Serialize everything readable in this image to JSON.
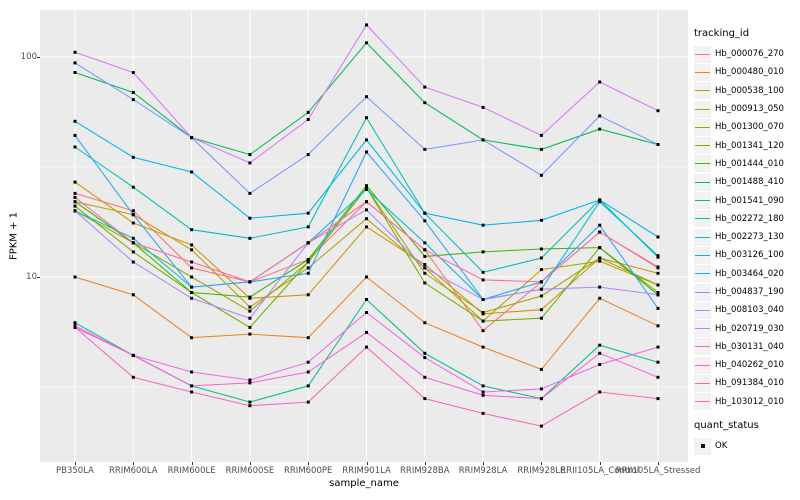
{
  "figure": {
    "background": "#FFFFFF",
    "panel_background": "#EBEBEB",
    "gridline_color": "#FFFFFF",
    "point_color": "#000000",
    "axis_text_color": "#4D4D4D"
  },
  "legend": {
    "tracking_title": "tracking_id",
    "quant_title": "quant_status",
    "quant_items": [
      {
        "label": "OK"
      }
    ]
  },
  "chart_data": {
    "type": "line",
    "title": "",
    "xlabel": "sample_name",
    "ylabel": "FPKM + 1",
    "y_scale": "log10",
    "y_ticks": [
      100,
      10
    ],
    "y_minor_gridlines": [
      31.62,
      3.162
    ],
    "ylim": [
      1.4,
      165
    ],
    "grid": true,
    "legend_position": "right",
    "point_shape": "filled-square",
    "categories": [
      "PB350LA",
      "RRIM600LA",
      "RRIM600LE",
      "RRIM600SE",
      "RRIM600PE",
      "RRIM901LA",
      "RRIM928BA",
      "RRIM928LA",
      "RRIM928LE",
      "RRII105LA_Control",
      "RRII105LA_Stressed"
    ],
    "series": [
      {
        "name": "Hb_000076_270",
        "color": "#F8766D",
        "values": [
          24,
          20,
          11,
          9.5,
          12,
          22,
          13.3,
          5.7,
          9.5,
          16,
          11
        ]
      },
      {
        "name": "Hb_000480_010",
        "color": "#E88526",
        "values": [
          10,
          8.3,
          5.3,
          5.5,
          5.3,
          10,
          6.2,
          4.8,
          3.8,
          8,
          6
        ]
      },
      {
        "name": "Hb_000538_100",
        "color": "#D39200",
        "values": [
          27,
          17.6,
          14,
          8,
          8.3,
          16.9,
          11.4,
          6.8,
          7.1,
          12.2,
          10.4
        ]
      },
      {
        "name": "Hb_000913_050",
        "color": "#B79F00",
        "values": [
          22,
          19.2,
          13.3,
          7.3,
          11,
          18.4,
          11,
          6.3,
          10.8,
          11.8,
          9.2
        ]
      },
      {
        "name": "Hb_001300_070",
        "color": "#9DA702",
        "values": [
          20,
          14.3,
          10,
          7,
          11.7,
          25.4,
          10.4,
          6.9,
          8.2,
          12.2,
          9.2
        ]
      },
      {
        "name": "Hb_001341_120",
        "color": "#6FB000",
        "values": [
          21,
          13,
          8.5,
          5.9,
          11.7,
          25.4,
          9.4,
          6.3,
          6.5,
          13.6,
          8.5
        ]
      },
      {
        "name": "Hb_001444_010",
        "color": "#39B600",
        "values": [
          22,
          14.3,
          8.5,
          8.1,
          12,
          26,
          12.4,
          13,
          13.4,
          13.6,
          8.3
        ]
      },
      {
        "name": "Hb_001488_410",
        "color": "#00BB4C",
        "values": [
          85,
          69,
          43,
          36,
          56,
          116,
          62,
          42,
          38,
          47,
          40
        ]
      },
      {
        "name": "Hb_001541_090",
        "color": "#00C08B",
        "values": [
          6.2,
          4.4,
          3.2,
          2.7,
          3.2,
          7.9,
          4.5,
          3.2,
          2.8,
          4.9,
          4.1
        ]
      },
      {
        "name": "Hb_002272_180",
        "color": "#00C0B4",
        "values": [
          39,
          25.6,
          16.4,
          15,
          16.9,
          53,
          19.5,
          10.5,
          12.2,
          22.4,
          12.3
        ]
      },
      {
        "name": "Hb_002273_130",
        "color": "#00BCD8",
        "values": [
          20,
          15,
          9,
          9.5,
          14.3,
          25,
          14.3,
          7.9,
          8.8,
          22,
          12.5
        ]
      },
      {
        "name": "Hb_003126_100",
        "color": "#00B3F2",
        "values": [
          51,
          35,
          30,
          18.5,
          19.5,
          42,
          19.5,
          17.2,
          18.1,
          22.4,
          15.2
        ]
      },
      {
        "name": "Hb_003464_020",
        "color": "#29A3FF",
        "values": [
          44,
          19.2,
          9,
          9.5,
          10.4,
          37,
          18,
          7.9,
          9.5,
          17.2,
          7.2
        ]
      },
      {
        "name": "Hb_004837_190",
        "color": "#7E96FF",
        "values": [
          94,
          64,
          43,
          24,
          36,
          66,
          38,
          42,
          29,
          54,
          40
        ]
      },
      {
        "name": "Hb_008103_040",
        "color": "#AE87FF",
        "values": [
          20,
          11.7,
          8,
          6.5,
          14.3,
          20.2,
          11,
          7.9,
          8.8,
          9,
          8.3
        ]
      },
      {
        "name": "Hb_020719_030",
        "color": "#D974FC",
        "values": [
          105,
          85,
          43,
          33,
          52,
          140,
          73,
          59,
          44,
          77,
          57
        ]
      },
      {
        "name": "Hb_030131_040",
        "color": "#F066EA",
        "values": [
          6.0,
          4.4,
          3.7,
          3.4,
          4.1,
          6.9,
          4.3,
          3.0,
          3.1,
          4.0,
          4.8
        ]
      },
      {
        "name": "Hb_040262_010",
        "color": "#FB61D7",
        "values": [
          5.9,
          4.4,
          3.2,
          3.3,
          3.7,
          5.6,
          3.5,
          2.9,
          2.8,
          4.5,
          3.5
        ]
      },
      {
        "name": "Hb_091384_010",
        "color": "#FF62BC",
        "values": [
          5.9,
          3.5,
          3.0,
          2.6,
          2.7,
          4.8,
          2.8,
          2.4,
          2.1,
          3.0,
          2.8
        ]
      },
      {
        "name": "Hb_103012_010",
        "color": "#FF6A9D",
        "values": [
          23,
          14.3,
          11.7,
          9.5,
          14.3,
          22,
          13.3,
          9.7,
          9.5,
          16,
          11.1
        ]
      }
    ]
  }
}
